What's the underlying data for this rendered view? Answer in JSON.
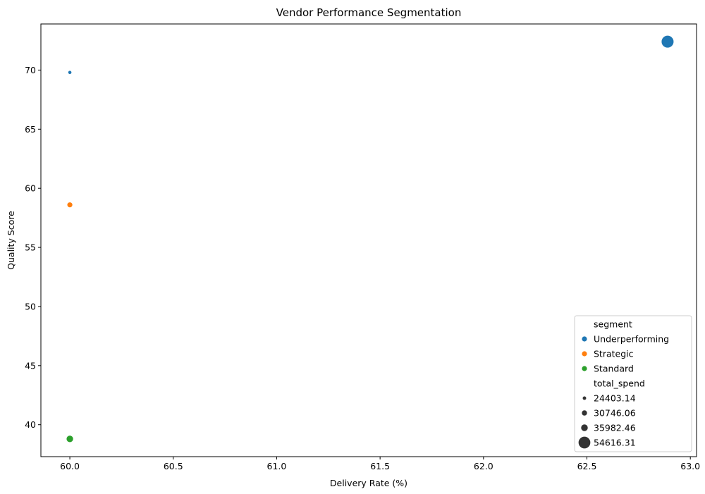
{
  "chart_data": {
    "type": "scatter",
    "title": "Vendor Performance Segmentation",
    "xlabel": "Delivery Rate (%)",
    "ylabel": "Quality Score",
    "xlim": [
      59.86,
      63.03
    ],
    "ylim": [
      37.3,
      73.9
    ],
    "xticks": [
      60.0,
      60.5,
      61.0,
      61.5,
      62.0,
      62.5,
      63.0
    ],
    "xtick_labels": [
      "60.0",
      "60.5",
      "61.0",
      "61.5",
      "62.0",
      "62.5",
      "63.0"
    ],
    "yticks": [
      40,
      45,
      50,
      55,
      60,
      65,
      70
    ],
    "ytick_labels": [
      "40",
      "45",
      "50",
      "55",
      "60",
      "65",
      "70"
    ],
    "grid": false,
    "legend_placement": "lower-right",
    "points": [
      {
        "x": 60.0,
        "y": 69.8,
        "segment": "Underperforming",
        "total_spend": 24403.14
      },
      {
        "x": 62.89,
        "y": 72.4,
        "segment": "Underperforming",
        "total_spend": 54616.31
      },
      {
        "x": 60.0,
        "y": 58.6,
        "segment": "Strategic",
        "total_spend": 30746.06
      },
      {
        "x": 60.0,
        "y": 38.8,
        "segment": "Standard",
        "total_spend": 35982.46
      }
    ],
    "legend": {
      "hue_title": "segment",
      "hue_entries": [
        {
          "label": "Underperforming",
          "color": "#1f77b4"
        },
        {
          "label": "Strategic",
          "color": "#ff7f0e"
        },
        {
          "label": "Standard",
          "color": "#2ca02c"
        }
      ],
      "size_title": "total_spend",
      "size_entries": [
        {
          "label": "24403.14",
          "value": 24403.14
        },
        {
          "label": "30746.06",
          "value": 30746.06
        },
        {
          "label": "35982.46",
          "value": 35982.46
        },
        {
          "label": "54616.31",
          "value": 54616.31
        }
      ]
    },
    "colors": {
      "Underperforming": "#1f77b4",
      "Strategic": "#ff7f0e",
      "Standard": "#2ca02c",
      "size_marker": "#333333"
    }
  }
}
